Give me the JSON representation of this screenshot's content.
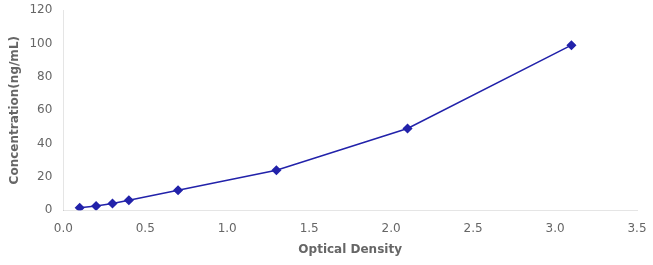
{
  "chart_data": {
    "type": "line",
    "x": [
      0.1,
      0.2,
      0.3,
      0.4,
      0.7,
      1.3,
      2.1,
      3.1
    ],
    "values": [
      1.5,
      2.5,
      4.0,
      6.0,
      12.0,
      24.0,
      49.0,
      99.0
    ],
    "color": "#2222aa",
    "marker": "diamond",
    "xlabel": "Optical Density",
    "ylabel": "Concentration(ng/mL)",
    "xlim": [
      0,
      3.5
    ],
    "ylim": [
      0,
      120
    ],
    "xticks": [
      {
        "value": 0,
        "label": "0.0"
      },
      0.5,
      {
        "value": 1.0,
        "label": "1.0"
      },
      1.5,
      {
        "value": 2.0,
        "label": "2.0"
      },
      2.5,
      {
        "value": 3.0,
        "label": "3.0"
      },
      3.5
    ],
    "yticks": [
      0,
      20,
      40,
      60,
      80,
      100,
      120
    ],
    "grid": false
  }
}
